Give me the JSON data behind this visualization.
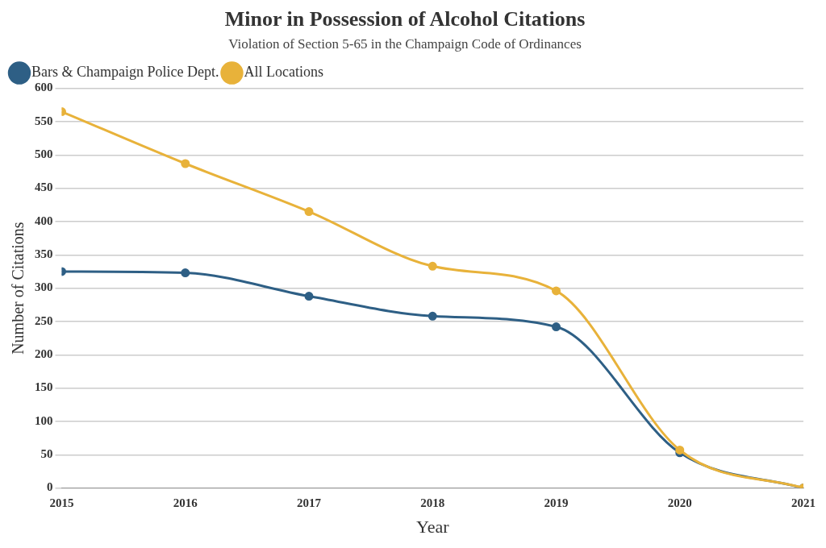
{
  "chart_data": {
    "type": "line",
    "title": "Minor in Possession of Alcohol Citations",
    "subtitle": "Violation of Section 5-65 in the Champaign Code of Ordinances",
    "xlabel": "Year",
    "ylabel": "Number of Citations",
    "x": [
      2015,
      2016,
      2017,
      2018,
      2019,
      2020,
      2021
    ],
    "series": [
      {
        "name": "Bars & Champaign Police Dept.",
        "color": "#2e5f85",
        "values": [
          325,
          323,
          288,
          258,
          242,
          53,
          0
        ]
      },
      {
        "name": "All Locations",
        "color": "#e8b23a",
        "values": [
          565,
          487,
          415,
          333,
          296,
          57,
          0
        ]
      }
    ],
    "xlim": [
      2015,
      2021
    ],
    "xticks": [
      2015,
      2016,
      2017,
      2018,
      2019,
      2020,
      2021
    ],
    "ylim": [
      0,
      600
    ],
    "yticks": [
      0,
      50,
      100,
      150,
      200,
      250,
      300,
      350,
      400,
      450,
      500,
      550,
      600
    ],
    "grid": "y",
    "legend": "top left",
    "marker": "circle",
    "line_style": "solid"
  }
}
